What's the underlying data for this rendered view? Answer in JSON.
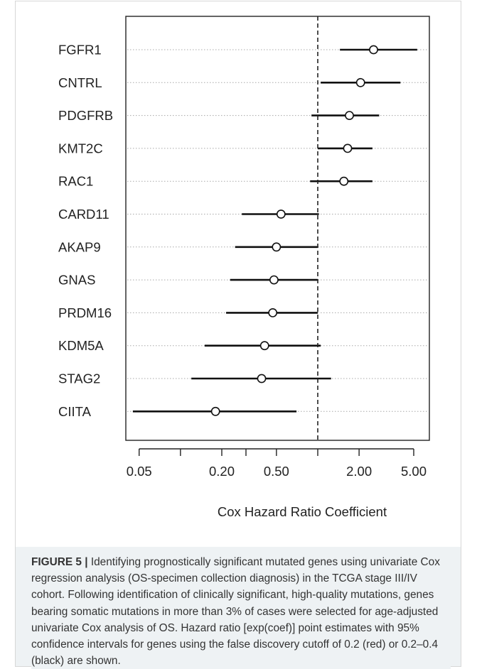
{
  "chart_data": {
    "type": "forest",
    "xscale": "log",
    "xlabel": "Cox Hazard Ratio Coefficient",
    "xticks": [
      "0.05",
      "0.20",
      "0.50",
      "2.00",
      "5.00"
    ],
    "xtick_values": [
      0.05,
      0.2,
      0.5,
      2.0,
      5.0
    ],
    "minor_xticks": [
      0.1,
      0.3,
      1.0
    ],
    "xlim": [
      0.04,
      6.5
    ],
    "reference_line": 1.0,
    "grid": "dotted horizontal guide lines per gene",
    "genes": [
      {
        "label": "FGFR1",
        "hr": 2.55,
        "ci_low": 1.45,
        "ci_high": 5.3
      },
      {
        "label": "CNTRL",
        "hr": 2.05,
        "ci_low": 1.05,
        "ci_high": 4.0
      },
      {
        "label": "PDGFRB",
        "hr": 1.7,
        "ci_low": 0.9,
        "ci_high": 2.8
      },
      {
        "label": "KMT2C",
        "hr": 1.65,
        "ci_low": 1.0,
        "ci_high": 2.5
      },
      {
        "label": "RAC1",
        "hr": 1.55,
        "ci_low": 0.88,
        "ci_high": 2.5
      },
      {
        "label": "CARD11",
        "hr": 0.54,
        "ci_low": 0.28,
        "ci_high": 1.02
      },
      {
        "label": "AKAP9",
        "hr": 0.5,
        "ci_low": 0.25,
        "ci_high": 1.0
      },
      {
        "label": "GNAS",
        "hr": 0.48,
        "ci_low": 0.23,
        "ci_high": 1.0
      },
      {
        "label": "PRDM16",
        "hr": 0.47,
        "ci_low": 0.215,
        "ci_high": 1.0
      },
      {
        "label": "KDM5A",
        "hr": 0.41,
        "ci_low": 0.15,
        "ci_high": 1.05
      },
      {
        "label": "STAG2",
        "hr": 0.39,
        "ci_low": 0.12,
        "ci_high": 1.25
      },
      {
        "label": "CIITA",
        "hr": 0.18,
        "ci_low": 0.045,
        "ci_high": 0.7
      }
    ]
  },
  "caption": {
    "label": "FIGURE 5 |",
    "text": " Identifying prognostically significant mutated genes using univariate Cox regression analysis (OS-specimen collection diagnosis) in the TCGA stage III/IV cohort. Following identification of clinically significant, high-quality mutations, genes bearing somatic mutations in more than 3% of cases were selected for age-adjusted univariate Cox analysis of OS. Hazard ratio [exp(coef)] point estimates with 95% confidence intervals for genes using the false discovery cutoff of 0.2 (red) or 0.2–0.4 (black) are shown."
  }
}
